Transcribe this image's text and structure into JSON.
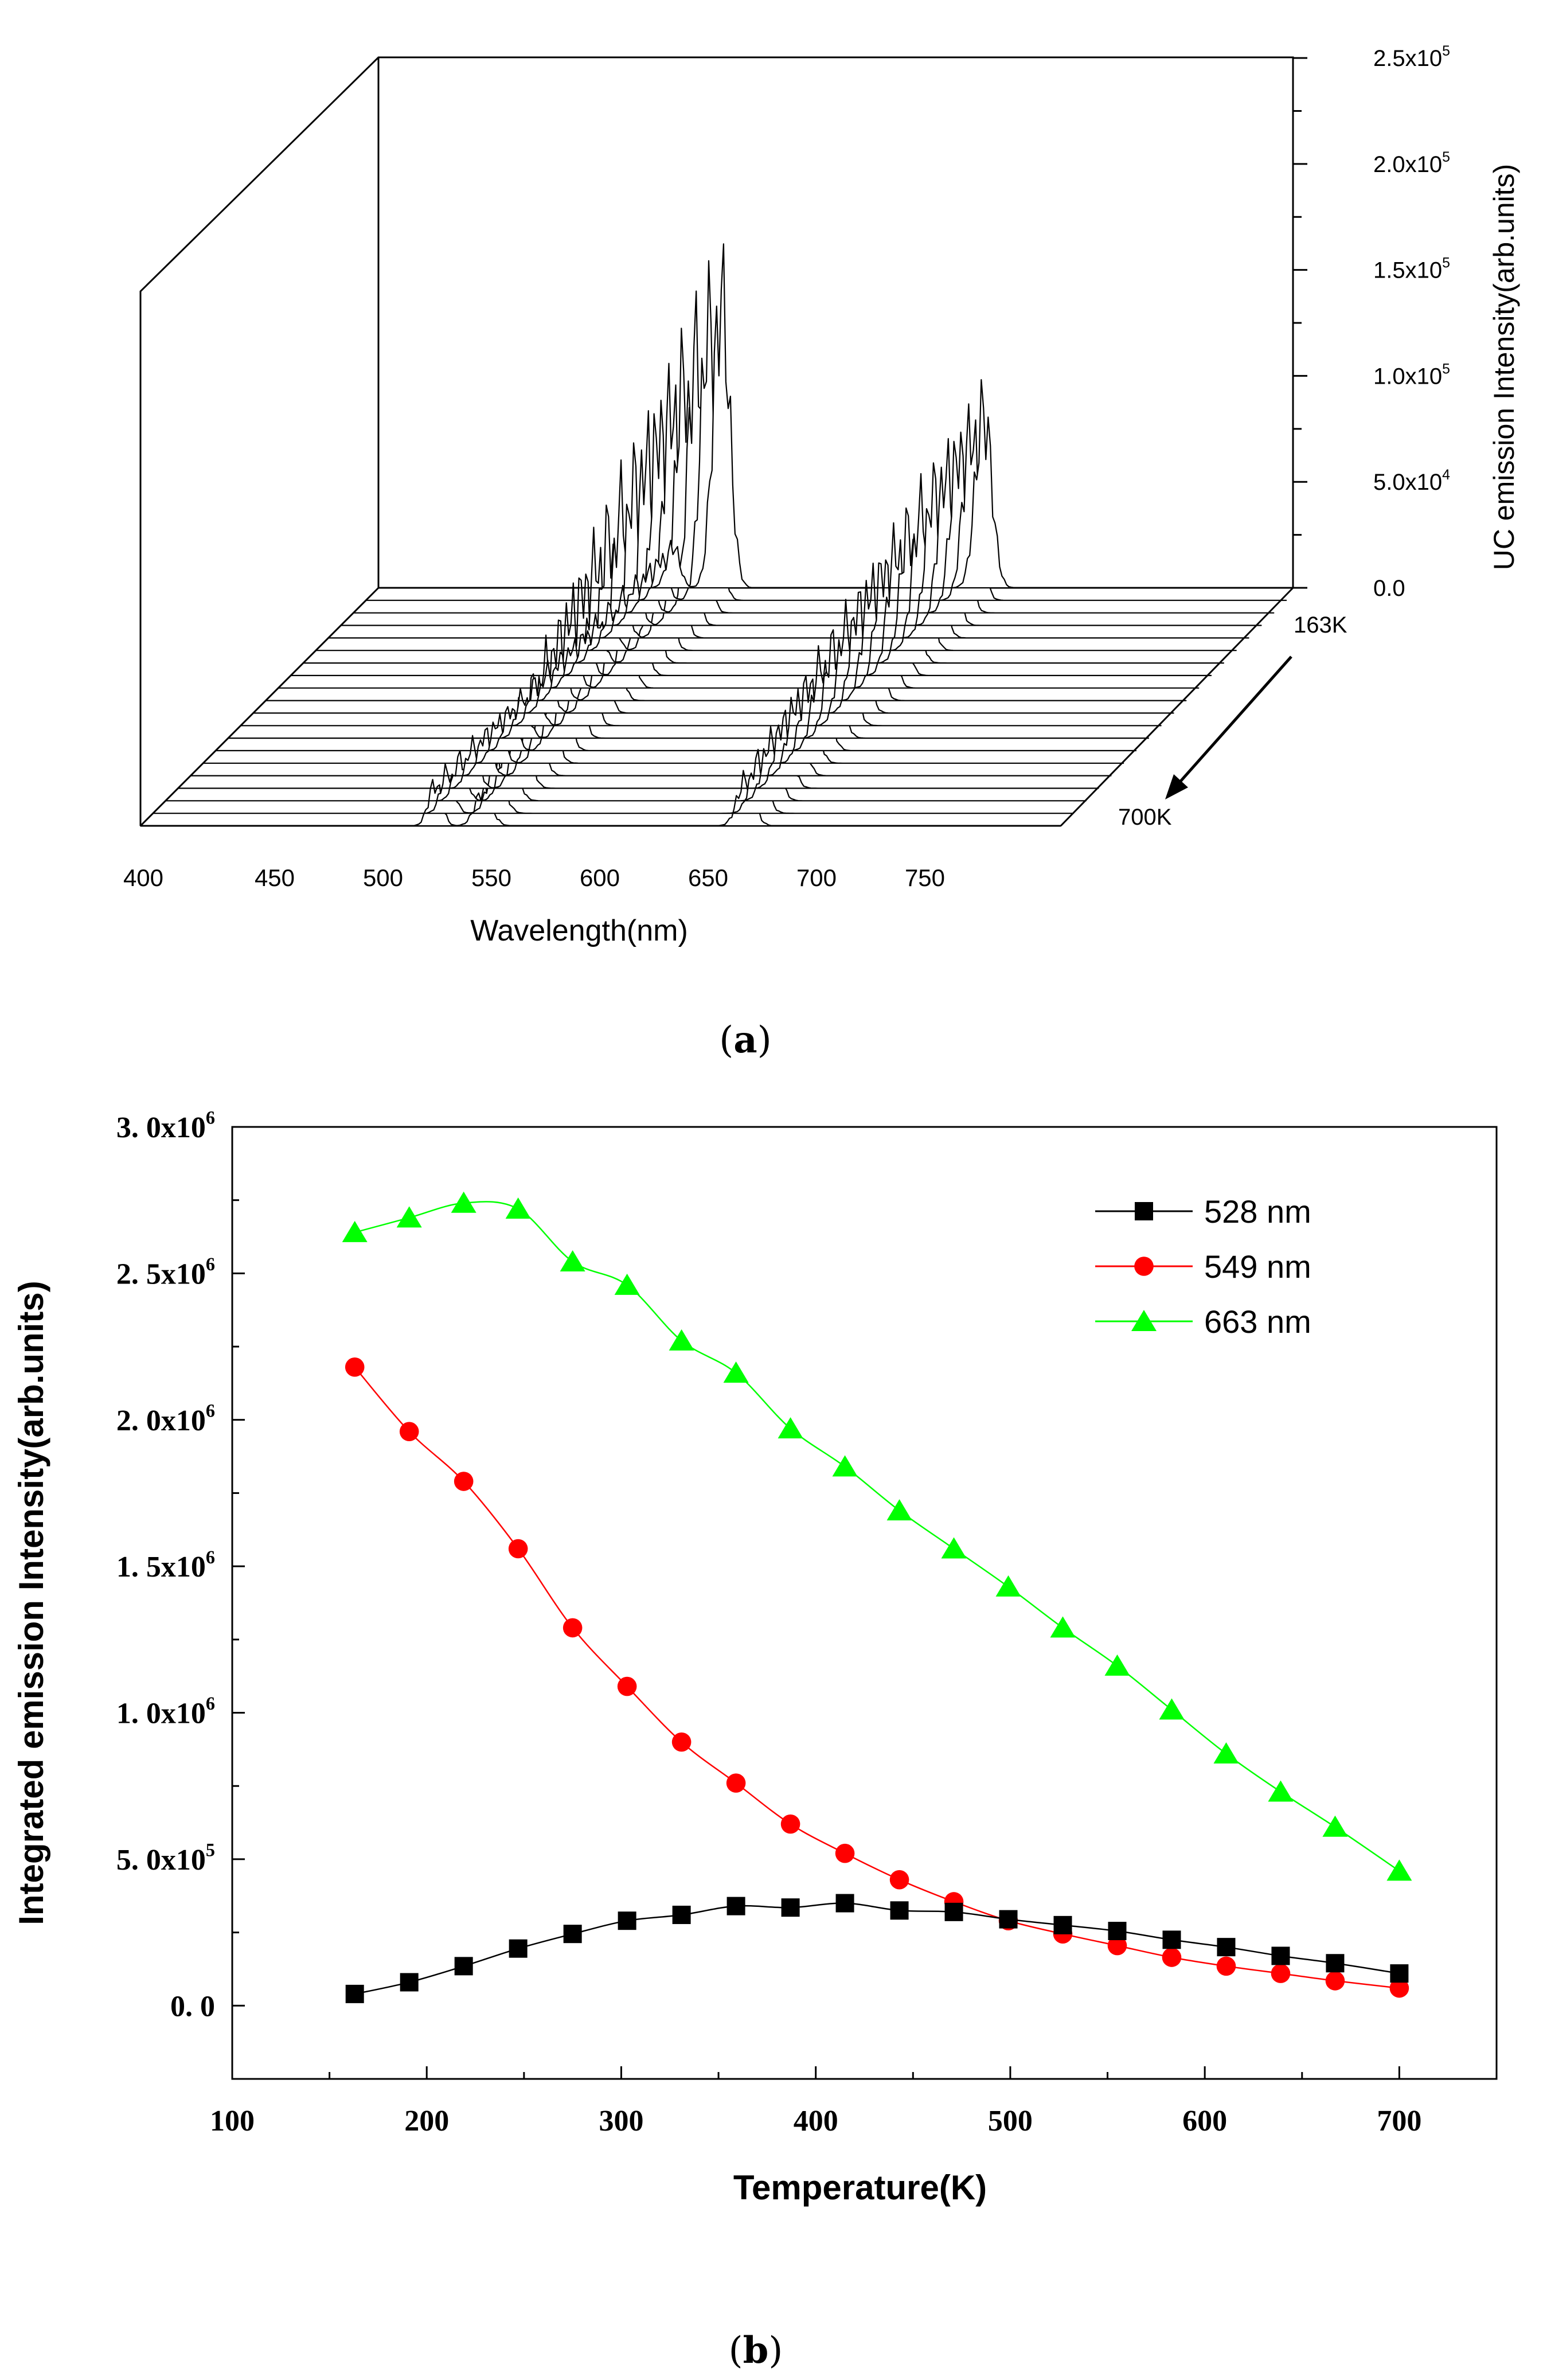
{
  "chart_data": [
    {
      "type": "waterfall-line",
      "panel_label": "(a)",
      "panel_letter": "a",
      "xlabel": "Wavelength(nm)",
      "ylabel": "UC emission Intensity(arb.units)",
      "x_ticks": [
        "400",
        "450",
        "500",
        "550",
        "600",
        "650",
        "700",
        "750"
      ],
      "y_ticks": [
        {
          "mant": "0.0",
          "exp": ""
        },
        {
          "mant": "5.0x10",
          "exp": "4"
        },
        {
          "mant": "1.0x10",
          "exp": "5"
        },
        {
          "mant": "1.5x10",
          "exp": "5"
        },
        {
          "mant": "2.0x10",
          "exp": "5"
        },
        {
          "mant": "2.5x10",
          "exp": "5"
        }
      ],
      "ylim": [
        0,
        250000
      ],
      "xlim": [
        400,
        800
      ],
      "z_start_label": "163K",
      "z_end_label": "700K",
      "n_spectra": 20,
      "peaks": [
        {
          "center": 528,
          "width": 4,
          "rel_amp": 0.08
        },
        {
          "center": 549,
          "width": 5,
          "rel_amp": 0.55
        },
        {
          "center": 663,
          "width": 5,
          "rel_amp": 0.35
        }
      ]
    },
    {
      "type": "line",
      "panel_label": "(b)",
      "panel_letter": "b",
      "xlabel": "Temperature(K)",
      "ylabel": "Integrated emission Intensity(arb.units)",
      "xlim": [
        100,
        750
      ],
      "ylim": [
        -250000,
        3000000
      ],
      "x_ticks": [
        "100",
        "200",
        "300",
        "400",
        "500",
        "600",
        "700"
      ],
      "y_ticks": [
        {
          "mant": "0. 0",
          "exp": ""
        },
        {
          "mant": "5. 0x10",
          "exp": "5"
        },
        {
          "mant": "1. 0x10",
          "exp": "6"
        },
        {
          "mant": "1. 5x10",
          "exp": "6"
        },
        {
          "mant": "2. 0x10",
          "exp": "6"
        },
        {
          "mant": "2. 5x10",
          "exp": "6"
        },
        {
          "mant": "3. 0x10",
          "exp": "6"
        }
      ],
      "legend_position": "top-right",
      "x": [
        163,
        191,
        219,
        247,
        275,
        303,
        331,
        359,
        387,
        415,
        443,
        471,
        499,
        527,
        555,
        583,
        611,
        639,
        667,
        700
      ],
      "series": [
        {
          "name": "528 nm",
          "color": "#000000",
          "marker": "square",
          "values": [
            40000,
            80000,
            135000,
            195000,
            245000,
            290000,
            310000,
            340000,
            335000,
            350000,
            325000,
            320000,
            295000,
            275000,
            255000,
            225000,
            200000,
            170000,
            145000,
            110000
          ]
        },
        {
          "name": "549 nm",
          "color": "#ff0000",
          "marker": "circle",
          "values": [
            2180000,
            1960000,
            1790000,
            1560000,
            1290000,
            1090000,
            900000,
            760000,
            620000,
            520000,
            430000,
            355000,
            290000,
            245000,
            205000,
            165000,
            135000,
            110000,
            85000,
            60000
          ]
        },
        {
          "name": "663 nm",
          "color": "#00ff00",
          "marker": "triangle",
          "values": [
            2640000,
            2690000,
            2740000,
            2720000,
            2540000,
            2460000,
            2270000,
            2160000,
            1970000,
            1840000,
            1690000,
            1560000,
            1430000,
            1290000,
            1160000,
            1010000,
            860000,
            730000,
            610000,
            460000
          ]
        }
      ]
    }
  ]
}
